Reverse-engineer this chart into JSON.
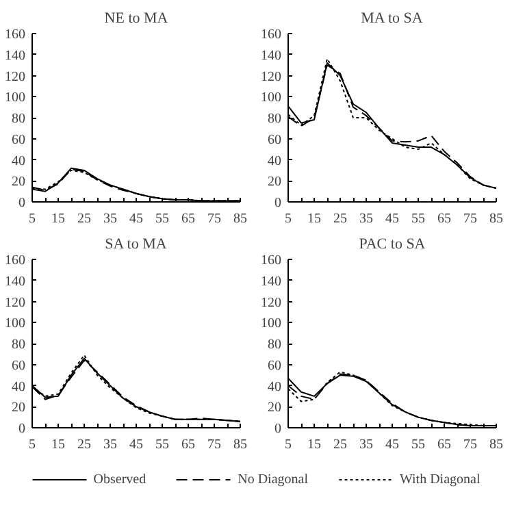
{
  "chart_data": [
    {
      "type": "line",
      "title": "NE to MA",
      "x": [
        5,
        10,
        15,
        20,
        25,
        30,
        35,
        40,
        45,
        50,
        55,
        60,
        65,
        70,
        75,
        80,
        85
      ],
      "xlim": [
        5,
        85
      ],
      "xticks": [
        5,
        {
          "value": 10,
          "label": null
        },
        15,
        {
          "value": 20,
          "label": null
        },
        25,
        {
          "value": 30,
          "label": null
        },
        35,
        {
          "value": 40,
          "label": null
        },
        45,
        {
          "value": 50,
          "label": null
        },
        55,
        {
          "value": 60,
          "label": null
        },
        65,
        {
          "value": 70,
          "label": null
        },
        75,
        {
          "value": 80,
          "label": null
        },
        85
      ],
      "ylim": [
        0,
        160
      ],
      "yticks": [
        0,
        20,
        40,
        60,
        80,
        100,
        120,
        140,
        160
      ],
      "grid": false,
      "legend": "bottom",
      "series": [
        {
          "name": "Observed",
          "color": "#000000",
          "line_style": "solid",
          "values": [
            12,
            10,
            18,
            32,
            30,
            22,
            16,
            12,
            8,
            5,
            3,
            2,
            2,
            1,
            1,
            1,
            1
          ]
        },
        {
          "name": "No Diagonal",
          "color": "#000000",
          "line_style": "dashed",
          "values": [
            14,
            11,
            17,
            31,
            29,
            21,
            15,
            11,
            8,
            5,
            3,
            2,
            2,
            1,
            1,
            1,
            1
          ]
        },
        {
          "name": "With Diagonal",
          "color": "#000000",
          "line_style": "dotted",
          "values": [
            13,
            12,
            19,
            30,
            28,
            21,
            16,
            12,
            8,
            5,
            3,
            2,
            2,
            1,
            1,
            1,
            1
          ]
        }
      ]
    },
    {
      "type": "line",
      "title": "MA to SA",
      "x": [
        5,
        10,
        15,
        20,
        25,
        30,
        35,
        40,
        45,
        50,
        55,
        60,
        65,
        70,
        75,
        80,
        85
      ],
      "xlim": [
        5,
        85
      ],
      "xticks": [
        5,
        {
          "value": 10,
          "label": null
        },
        15,
        {
          "value": 20,
          "label": null
        },
        25,
        {
          "value": 30,
          "label": null
        },
        35,
        {
          "value": 40,
          "label": null
        },
        45,
        {
          "value": 50,
          "label": null
        },
        55,
        {
          "value": 60,
          "label": null
        },
        65,
        {
          "value": 70,
          "label": null
        },
        75,
        {
          "value": 80,
          "label": null
        },
        85
      ],
      "ylim": [
        0,
        160
      ],
      "yticks": [
        0,
        20,
        40,
        60,
        80,
        100,
        120,
        140,
        160
      ],
      "grid": false,
      "series": [
        {
          "color": "#000000",
          "line_style": "solid",
          "values": [
            91,
            75,
            78,
            132,
            120,
            93,
            85,
            70,
            56,
            54,
            52,
            52,
            45,
            35,
            23,
            16,
            13
          ]
        },
        {
          "color": "#000000",
          "line_style": "dashed",
          "values": [
            81,
            72,
            80,
            130,
            122,
            90,
            82,
            70,
            58,
            57,
            58,
            63,
            48,
            37,
            24,
            16,
            13
          ]
        },
        {
          "color": "#000000",
          "line_style": "dotted",
          "values": [
            83,
            73,
            82,
            136,
            115,
            80,
            80,
            68,
            60,
            52,
            50,
            56,
            45,
            35,
            22,
            16,
            13
          ]
        }
      ]
    },
    {
      "type": "line",
      "title": "SA to MA",
      "x": [
        5,
        10,
        15,
        20,
        25,
        30,
        35,
        40,
        45,
        50,
        55,
        60,
        65,
        70,
        75,
        80,
        85
      ],
      "xlim": [
        5,
        85
      ],
      "xticks": [
        5,
        {
          "value": 10,
          "label": null
        },
        15,
        {
          "value": 20,
          "label": null
        },
        25,
        {
          "value": 30,
          "label": null
        },
        35,
        {
          "value": 40,
          "label": null
        },
        45,
        {
          "value": 50,
          "label": null
        },
        55,
        {
          "value": 60,
          "label": null
        },
        65,
        {
          "value": 70,
          "label": null
        },
        75,
        {
          "value": 80,
          "label": null
        },
        85
      ],
      "ylim": [
        0,
        160
      ],
      "yticks": [
        0,
        20,
        40,
        60,
        80,
        100,
        120,
        140,
        160
      ],
      "grid": false,
      "series": [
        {
          "color": "#000000",
          "line_style": "solid",
          "values": [
            40,
            29,
            30,
            50,
            66,
            52,
            40,
            28,
            20,
            15,
            11,
            8,
            8,
            8,
            8,
            7,
            6
          ]
        },
        {
          "color": "#000000",
          "line_style": "dashed",
          "values": [
            39,
            27,
            31,
            48,
            64,
            53,
            41,
            29,
            21,
            15,
            11,
            8,
            8,
            9,
            8,
            7,
            6
          ]
        },
        {
          "color": "#000000",
          "line_style": "dotted",
          "values": [
            39,
            30,
            32,
            52,
            69,
            50,
            38,
            28,
            19,
            14,
            11,
            8,
            8,
            8,
            8,
            7,
            6
          ]
        }
      ]
    },
    {
      "type": "line",
      "title": "PAC to SA",
      "x": [
        5,
        10,
        15,
        20,
        25,
        30,
        35,
        40,
        45,
        50,
        55,
        60,
        65,
        70,
        75,
        80,
        85
      ],
      "xlim": [
        5,
        85
      ],
      "xticks": [
        5,
        {
          "value": 10,
          "label": null
        },
        15,
        {
          "value": 20,
          "label": null
        },
        25,
        {
          "value": 30,
          "label": null
        },
        35,
        {
          "value": 40,
          "label": null
        },
        45,
        {
          "value": 50,
          "label": null
        },
        55,
        {
          "value": 60,
          "label": null
        },
        65,
        {
          "value": 70,
          "label": null
        },
        75,
        {
          "value": 80,
          "label": null
        },
        85
      ],
      "ylim": [
        0,
        160
      ],
      "yticks": [
        0,
        20,
        40,
        60,
        80,
        100,
        120,
        140,
        160
      ],
      "grid": false,
      "series": [
        {
          "color": "#000000",
          "line_style": "solid",
          "values": [
            47,
            34,
            30,
            42,
            50,
            49,
            44,
            33,
            22,
            15,
            10,
            7,
            5,
            3,
            2,
            2,
            2
          ]
        },
        {
          "color": "#000000",
          "line_style": "dashed",
          "values": [
            40,
            30,
            27,
            42,
            51,
            50,
            45,
            34,
            23,
            15,
            10,
            7,
            5,
            3,
            2,
            2,
            2
          ]
        },
        {
          "color": "#000000",
          "line_style": "dotted",
          "values": [
            37,
            25,
            27,
            43,
            53,
            50,
            45,
            33,
            21,
            15,
            10,
            7,
            5,
            4,
            3,
            2,
            2
          ]
        }
      ]
    }
  ]
}
